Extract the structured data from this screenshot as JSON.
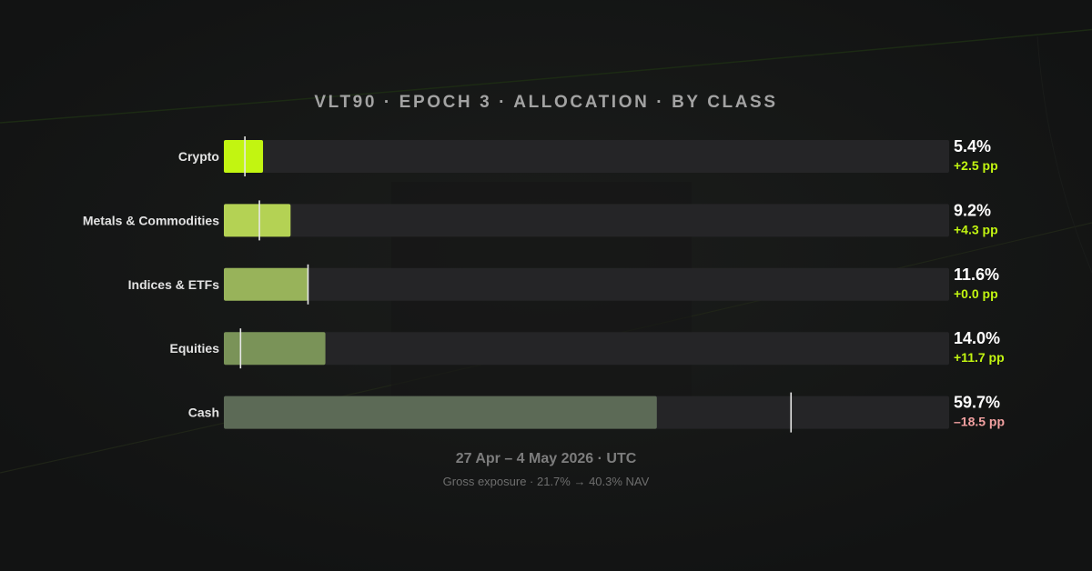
{
  "chart_data": {
    "type": "bar",
    "orientation": "horizontal",
    "title": "VLT90 · EPOCH 3 · ALLOCATION · BY CLASS",
    "categories": [
      "Crypto",
      "Metals & Commodities",
      "Indices & ETFs",
      "Equities",
      "Cash"
    ],
    "values": [
      5.4,
      9.2,
      11.6,
      14.0,
      59.7
    ],
    "value_labels": [
      "5.4%",
      "9.2%",
      "11.6%",
      "14.0%",
      "59.7%"
    ],
    "previous_values": [
      2.9,
      4.9,
      11.6,
      2.3,
      78.2
    ],
    "change_labels": [
      "+2.5 pp",
      "+4.3 pp",
      "+0.0 pp",
      "+11.7 pp",
      "–18.5 pp"
    ],
    "xlim": [
      0,
      100
    ],
    "bar_colors": [
      "#c2f511",
      "#b4d254",
      "#98b35a",
      "#7a9358",
      "#5c6a56"
    ],
    "positive_color": "#c2f511",
    "negative_color": "#f2a0a0",
    "grid": false,
    "legend": "none"
  },
  "footer": {
    "range": "27 Apr – 4 May 2026 · UTC",
    "exposure": "Gross exposure · 21.7% → 40.3% NAV"
  }
}
